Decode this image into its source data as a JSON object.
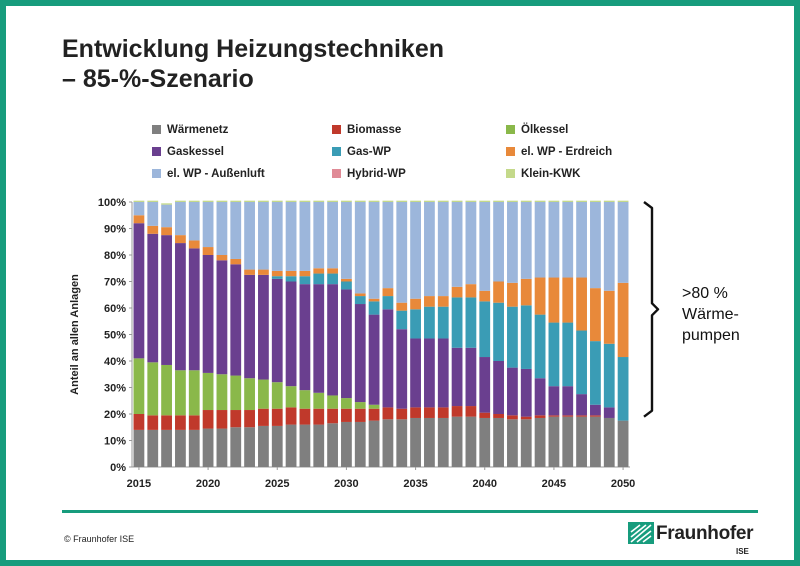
{
  "slide": {
    "title_line1": "Entwicklung Heizungstechniken",
    "title_line2": "– 85-%-Szenario",
    "copyright": "© Fraunhofer ISE",
    "logo_name": "Fraunhofer",
    "logo_sub": "ISE",
    "accent_color": "#179c7d"
  },
  "chart_data": {
    "type": "bar",
    "stacked": true,
    "ylabel": "Anteil an allen Anlagen",
    "ylim": [
      0,
      100
    ],
    "yticks": [
      "0%",
      "10%",
      "20%",
      "30%",
      "40%",
      "50%",
      "60%",
      "70%",
      "80%",
      "90%",
      "100%"
    ],
    "xticks": [
      "2015",
      "2020",
      "2025",
      "2030",
      "2035",
      "2040",
      "2045",
      "2050"
    ],
    "grid": false,
    "legend_position": "top",
    "annotation": {
      "lines": [
        ">80 %",
        "Wärme-",
        "pumpen"
      ],
      "bracket_range": [
        19,
        100
      ]
    },
    "categories": [
      "2015",
      "2016",
      "2017",
      "2018",
      "2019",
      "2020",
      "2021",
      "2022",
      "2023",
      "2024",
      "2025",
      "2026",
      "2027",
      "2028",
      "2029",
      "2030",
      "2031",
      "2032",
      "2033",
      "2034",
      "2035",
      "2036",
      "2037",
      "2038",
      "2039",
      "2040",
      "2041",
      "2042",
      "2043",
      "2044",
      "2045",
      "2046",
      "2047",
      "2048",
      "2049",
      "2050"
    ],
    "series": [
      {
        "name": "Wärmenetz",
        "color": "#7f7f7f",
        "values": [
          14,
          14,
          14,
          14,
          14,
          14.5,
          14.5,
          15,
          15,
          15.5,
          15.5,
          16,
          16,
          16,
          16.5,
          17,
          17,
          17.5,
          18,
          18,
          18.5,
          18.5,
          18.5,
          19,
          19,
          18.5,
          18.5,
          18,
          18,
          18.5,
          19,
          19,
          19,
          19,
          18.5,
          17.5
        ]
      },
      {
        "name": "Biomasse",
        "color": "#c0392b",
        "values": [
          6,
          5.5,
          5.5,
          5.5,
          5.5,
          7,
          7,
          6.5,
          6.5,
          6.5,
          6.5,
          6.5,
          6,
          6,
          5.5,
          5,
          5,
          4.5,
          4.5,
          4,
          4,
          4,
          4,
          4,
          4,
          2,
          1.5,
          1.5,
          1,
          1,
          0.5,
          0.5,
          0.5,
          0.5,
          0,
          0
        ]
      },
      {
        "name": "Ölkessel",
        "color": "#8ab84a",
        "values": [
          21,
          20,
          19,
          17,
          17,
          14,
          13.5,
          13,
          12,
          11,
          10,
          8,
          7,
          6,
          5,
          4,
          2.5,
          1.5,
          0,
          0,
          0,
          0,
          0,
          0,
          0,
          0,
          0,
          0,
          0,
          0,
          0,
          0,
          0,
          0,
          0,
          0
        ]
      },
      {
        "name": "Gaskessel",
        "color": "#6a3f8f",
        "values": [
          51,
          48.5,
          49,
          48,
          46,
          44.5,
          43,
          42,
          39,
          39.5,
          39,
          39.5,
          40,
          41,
          42,
          41,
          37,
          34,
          37,
          30,
          26,
          26,
          26,
          22,
          22,
          21,
          20,
          18,
          18,
          14,
          11,
          11,
          8,
          4,
          4,
          0
        ]
      },
      {
        "name": "Gas-WP",
        "color": "#3a9cb5",
        "values": [
          0,
          0,
          0,
          0,
          0,
          0,
          0,
          0,
          0,
          0,
          1,
          2,
          3,
          4,
          4,
          3,
          3,
          5,
          5,
          7,
          11,
          12,
          12,
          19,
          19,
          21,
          22,
          23,
          24,
          24,
          24,
          24,
          24,
          24,
          24,
          24
        ]
      },
      {
        "name": "el. WP - Erdreich",
        "color": "#e8893a",
        "values": [
          3,
          3,
          3,
          3,
          3,
          3,
          2,
          2,
          2,
          2,
          2,
          2,
          2,
          2,
          2,
          1,
          1,
          1,
          3,
          3,
          4,
          4,
          4,
          4,
          5,
          4,
          8,
          9,
          10,
          14,
          17,
          17,
          20,
          20,
          20,
          28
        ]
      },
      {
        "name": "el. WP - Außenluft",
        "color": "#9cb6db",
        "values": [
          5,
          9,
          8.5,
          12.5,
          14.5,
          17,
          20,
          21.5,
          25.5,
          25.5,
          26,
          26,
          26,
          25,
          25,
          29,
          34.5,
          36.5,
          32.5,
          38,
          36.5,
          35.5,
          35.5,
          32,
          31,
          33.5,
          30,
          30.5,
          29,
          28.5,
          28.5,
          28.5,
          28.5,
          32.5,
          33.5,
          30.5
        ]
      },
      {
        "name": "Hybrid-WP",
        "color": "#e08a96",
        "values": [
          0,
          0,
          0,
          0,
          0,
          0,
          0,
          0,
          0,
          0,
          0,
          0,
          0,
          0,
          0,
          0,
          0,
          0,
          0,
          0,
          0,
          0,
          0,
          0,
          0,
          0,
          0,
          0,
          0,
          0,
          0,
          0,
          0,
          0,
          0,
          0
        ]
      },
      {
        "name": "Klein-KWK",
        "color": "#c4d98a",
        "values": [
          0.5,
          0.5,
          0.5,
          0.5,
          0.5,
          0.5,
          0.5,
          0.5,
          0.5,
          0.5,
          0.5,
          0.5,
          0.5,
          0.5,
          0.5,
          0.5,
          0.5,
          0.5,
          0.5,
          0.5,
          0.5,
          0.5,
          0.5,
          0.5,
          0.5,
          0.5,
          0.5,
          0.5,
          0.5,
          0.5,
          0.5,
          0.5,
          0.5,
          0.5,
          0.5,
          0.5
        ]
      }
    ]
  }
}
